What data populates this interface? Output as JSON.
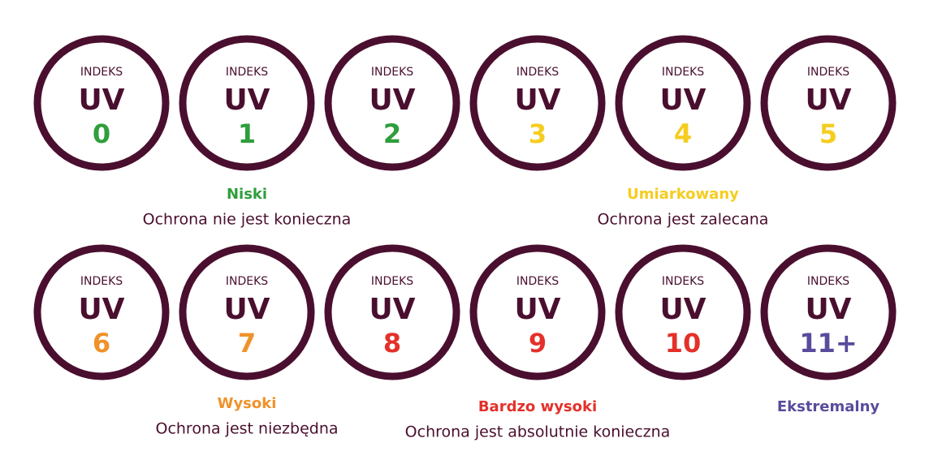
{
  "circles": [
    {
      "top": "INDEKS",
      "middle": "UV",
      "value": "0",
      "color": "#2f9e3c"
    },
    {
      "top": "INDEKS",
      "middle": "UV",
      "value": "1",
      "color": "#2f9e3c"
    },
    {
      "top": "INDEKS",
      "middle": "UV",
      "value": "2",
      "color": "#2f9e3c"
    },
    {
      "top": "INDEKS",
      "middle": "UV",
      "value": "3",
      "color": "#f5cd1f"
    },
    {
      "top": "INDEKS",
      "middle": "UV",
      "value": "4",
      "color": "#f5cd1f"
    },
    {
      "top": "INDEKS",
      "middle": "UV",
      "value": "5",
      "color": "#f5cd1f"
    },
    {
      "top": "INDEKS",
      "middle": "UV",
      "value": "6",
      "color": "#f0922a"
    },
    {
      "top": "INDEKS",
      "middle": "UV",
      "value": "7",
      "color": "#f0922a"
    },
    {
      "top": "INDEKS",
      "middle": "UV",
      "value": "8",
      "color": "#e3312a"
    },
    {
      "top": "INDEKS",
      "middle": "UV",
      "value": "9",
      "color": "#e3312a"
    },
    {
      "top": "INDEKS",
      "middle": "UV",
      "value": "10",
      "color": "#e3312a"
    },
    {
      "top": "INDEKS",
      "middle": "UV",
      "value": "11+",
      "color": "#5a4b9c"
    }
  ],
  "groups": [
    {
      "title": "Niski",
      "description": "Ochrona nie jest konieczna",
      "color": "#2f9e3c"
    },
    {
      "title": "Umiarkowany",
      "description": "Ochrona jest zalecana",
      "color": "#f5cd1f"
    },
    {
      "title": "Wysoki",
      "description": "Ochrona jest niezbędna",
      "color": "#f0922a"
    },
    {
      "title": "Bardzo wysoki",
      "description": "Ochrona jest absolutnie konieczna",
      "color": "#e3312a"
    },
    {
      "title": "Ekstremalny",
      "color": "#5a4b9c"
    }
  ]
}
